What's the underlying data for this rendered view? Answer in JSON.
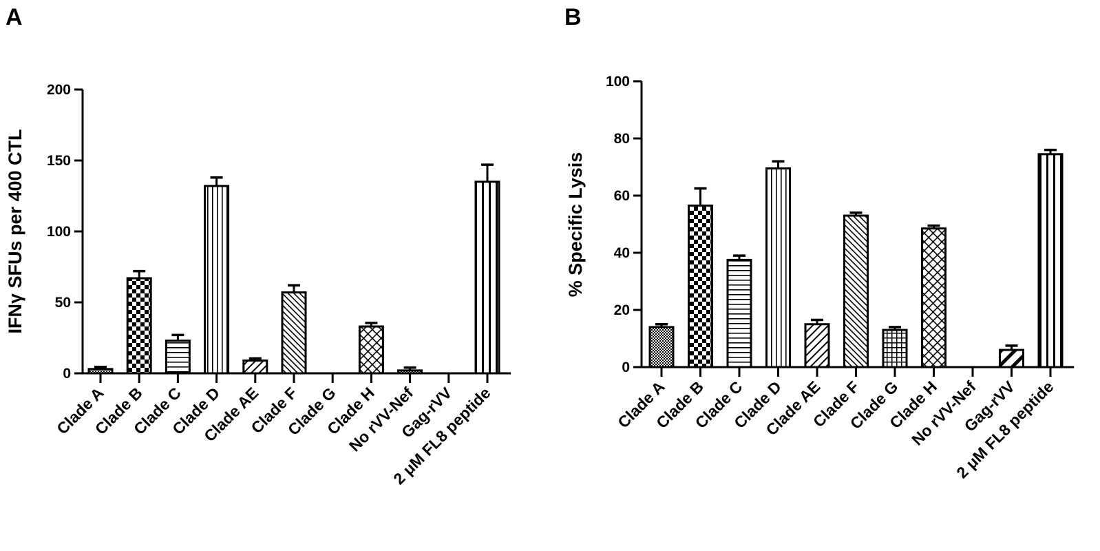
{
  "chart_data": [
    {
      "type": "bar",
      "panel_label": "A",
      "title": "",
      "xlabel": "",
      "ylabel": "IFNγ SFUs per 400 CTL",
      "ylim": [
        0,
        200
      ],
      "yticks": [
        0,
        50,
        100,
        150,
        200
      ],
      "categories": [
        "Clade A",
        "Clade B",
        "Clade C",
        "Clade D",
        "Clade AE",
        "Clade F",
        "Clade G",
        "Clade H",
        "No rVV-Nef",
        "Gag-rVV",
        "2 μM FL8 peptide"
      ],
      "values": [
        3,
        67,
        23,
        132,
        9,
        57,
        0,
        33,
        2,
        0,
        135
      ],
      "errors": [
        1.5,
        5,
        4,
        6,
        1.5,
        5,
        0,
        2.5,
        2,
        0,
        12
      ],
      "patterns": [
        "dots",
        "checker",
        "hlines",
        "vlines",
        "diag-right",
        "diag-left-dense",
        "none",
        "crosshatch-diag",
        "dots",
        "none",
        "vlines-wide"
      ]
    },
    {
      "type": "bar",
      "panel_label": "B",
      "title": "",
      "xlabel": "",
      "ylabel": "% Specific Lysis",
      "ylim": [
        0,
        100
      ],
      "yticks": [
        0,
        20,
        40,
        60,
        80,
        100
      ],
      "categories": [
        "Clade A",
        "Clade B",
        "Clade C",
        "Clade D",
        "Clade AE",
        "Clade F",
        "Clade G",
        "Clade H",
        "No rVV-Nef",
        "Gag-rVV",
        "2 μM FL8 peptide"
      ],
      "values": [
        14,
        56.5,
        37.5,
        69.5,
        15,
        53,
        13,
        48.5,
        0,
        6,
        74.5
      ],
      "errors": [
        1,
        6,
        1.5,
        2.5,
        1.5,
        1,
        1,
        1,
        0,
        1.5,
        1.5
      ],
      "patterns": [
        "dots",
        "checker",
        "hlines",
        "vlines",
        "diag-right",
        "diag-left-dense",
        "grid",
        "crosshatch-diag",
        "none",
        "diag-right-wide",
        "vlines-wide"
      ]
    }
  ]
}
